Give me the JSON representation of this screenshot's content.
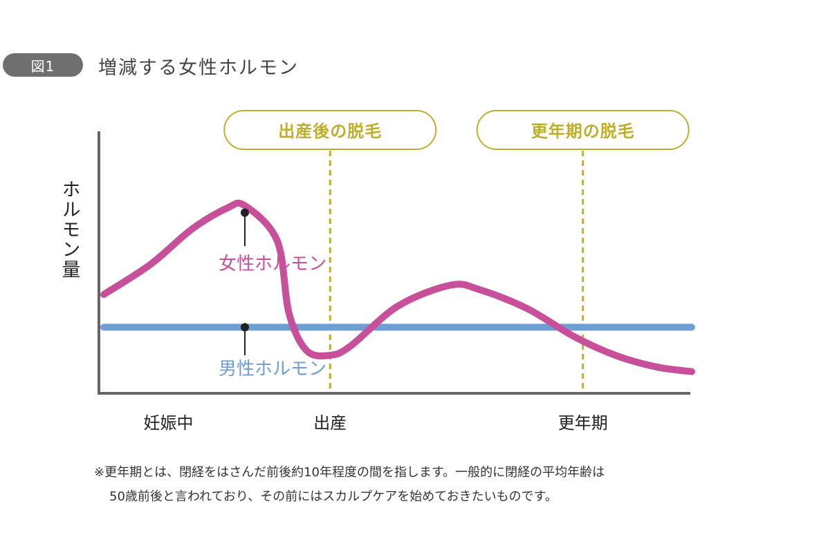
{
  "figure": {
    "badge": "図1",
    "title": "増減する女性ホルモン"
  },
  "chart_data": {
    "type": "line",
    "title": "増減する女性ホルモン",
    "ylabel": "ホルモン量",
    "xlabel": "",
    "x_ticks": [
      {
        "label": "妊娠中",
        "x": 0.11
      },
      {
        "label": "出産",
        "x": 0.385
      },
      {
        "label": "更年期",
        "x": 0.815
      }
    ],
    "xlim": [
      0,
      1
    ],
    "ylim": [
      0,
      1
    ],
    "series": [
      {
        "name": "女性ホルモン",
        "color": "#c8509a",
        "points": [
          [
            0.0,
            0.42
          ],
          [
            0.08,
            0.55
          ],
          [
            0.15,
            0.7
          ],
          [
            0.21,
            0.79
          ],
          [
            0.24,
            0.8
          ],
          [
            0.295,
            0.65
          ],
          [
            0.315,
            0.34
          ],
          [
            0.345,
            0.18
          ],
          [
            0.385,
            0.16
          ],
          [
            0.42,
            0.2
          ],
          [
            0.5,
            0.37
          ],
          [
            0.59,
            0.46
          ],
          [
            0.64,
            0.44
          ],
          [
            0.72,
            0.36
          ],
          [
            0.8,
            0.24
          ],
          [
            0.87,
            0.16
          ],
          [
            0.94,
            0.11
          ],
          [
            1.0,
            0.09
          ]
        ],
        "marker": [
          0.24,
          0.8
        ]
      },
      {
        "name": "男性ホルモン",
        "color": "#6e9ed4",
        "points": [
          [
            0.0,
            0.28
          ],
          [
            1.0,
            0.28
          ]
        ],
        "marker": [
          0.24,
          0.28
        ]
      }
    ],
    "annotations": [
      {
        "label": "出産後の脱毛",
        "x": 0.385,
        "color": "#bfae2a"
      },
      {
        "label": "更年期の脱毛",
        "x": 0.815,
        "color": "#bfae2a"
      }
    ],
    "grid": false,
    "legend": "inline"
  },
  "note": {
    "line1": "※更年期とは、閉経をはさんだ前後約10年程度の間を指します。一般的に閉経の平均年齢は",
    "line2": "50歳前後と言われており、その前にはスカルプケアを始めておきたいものです。"
  }
}
